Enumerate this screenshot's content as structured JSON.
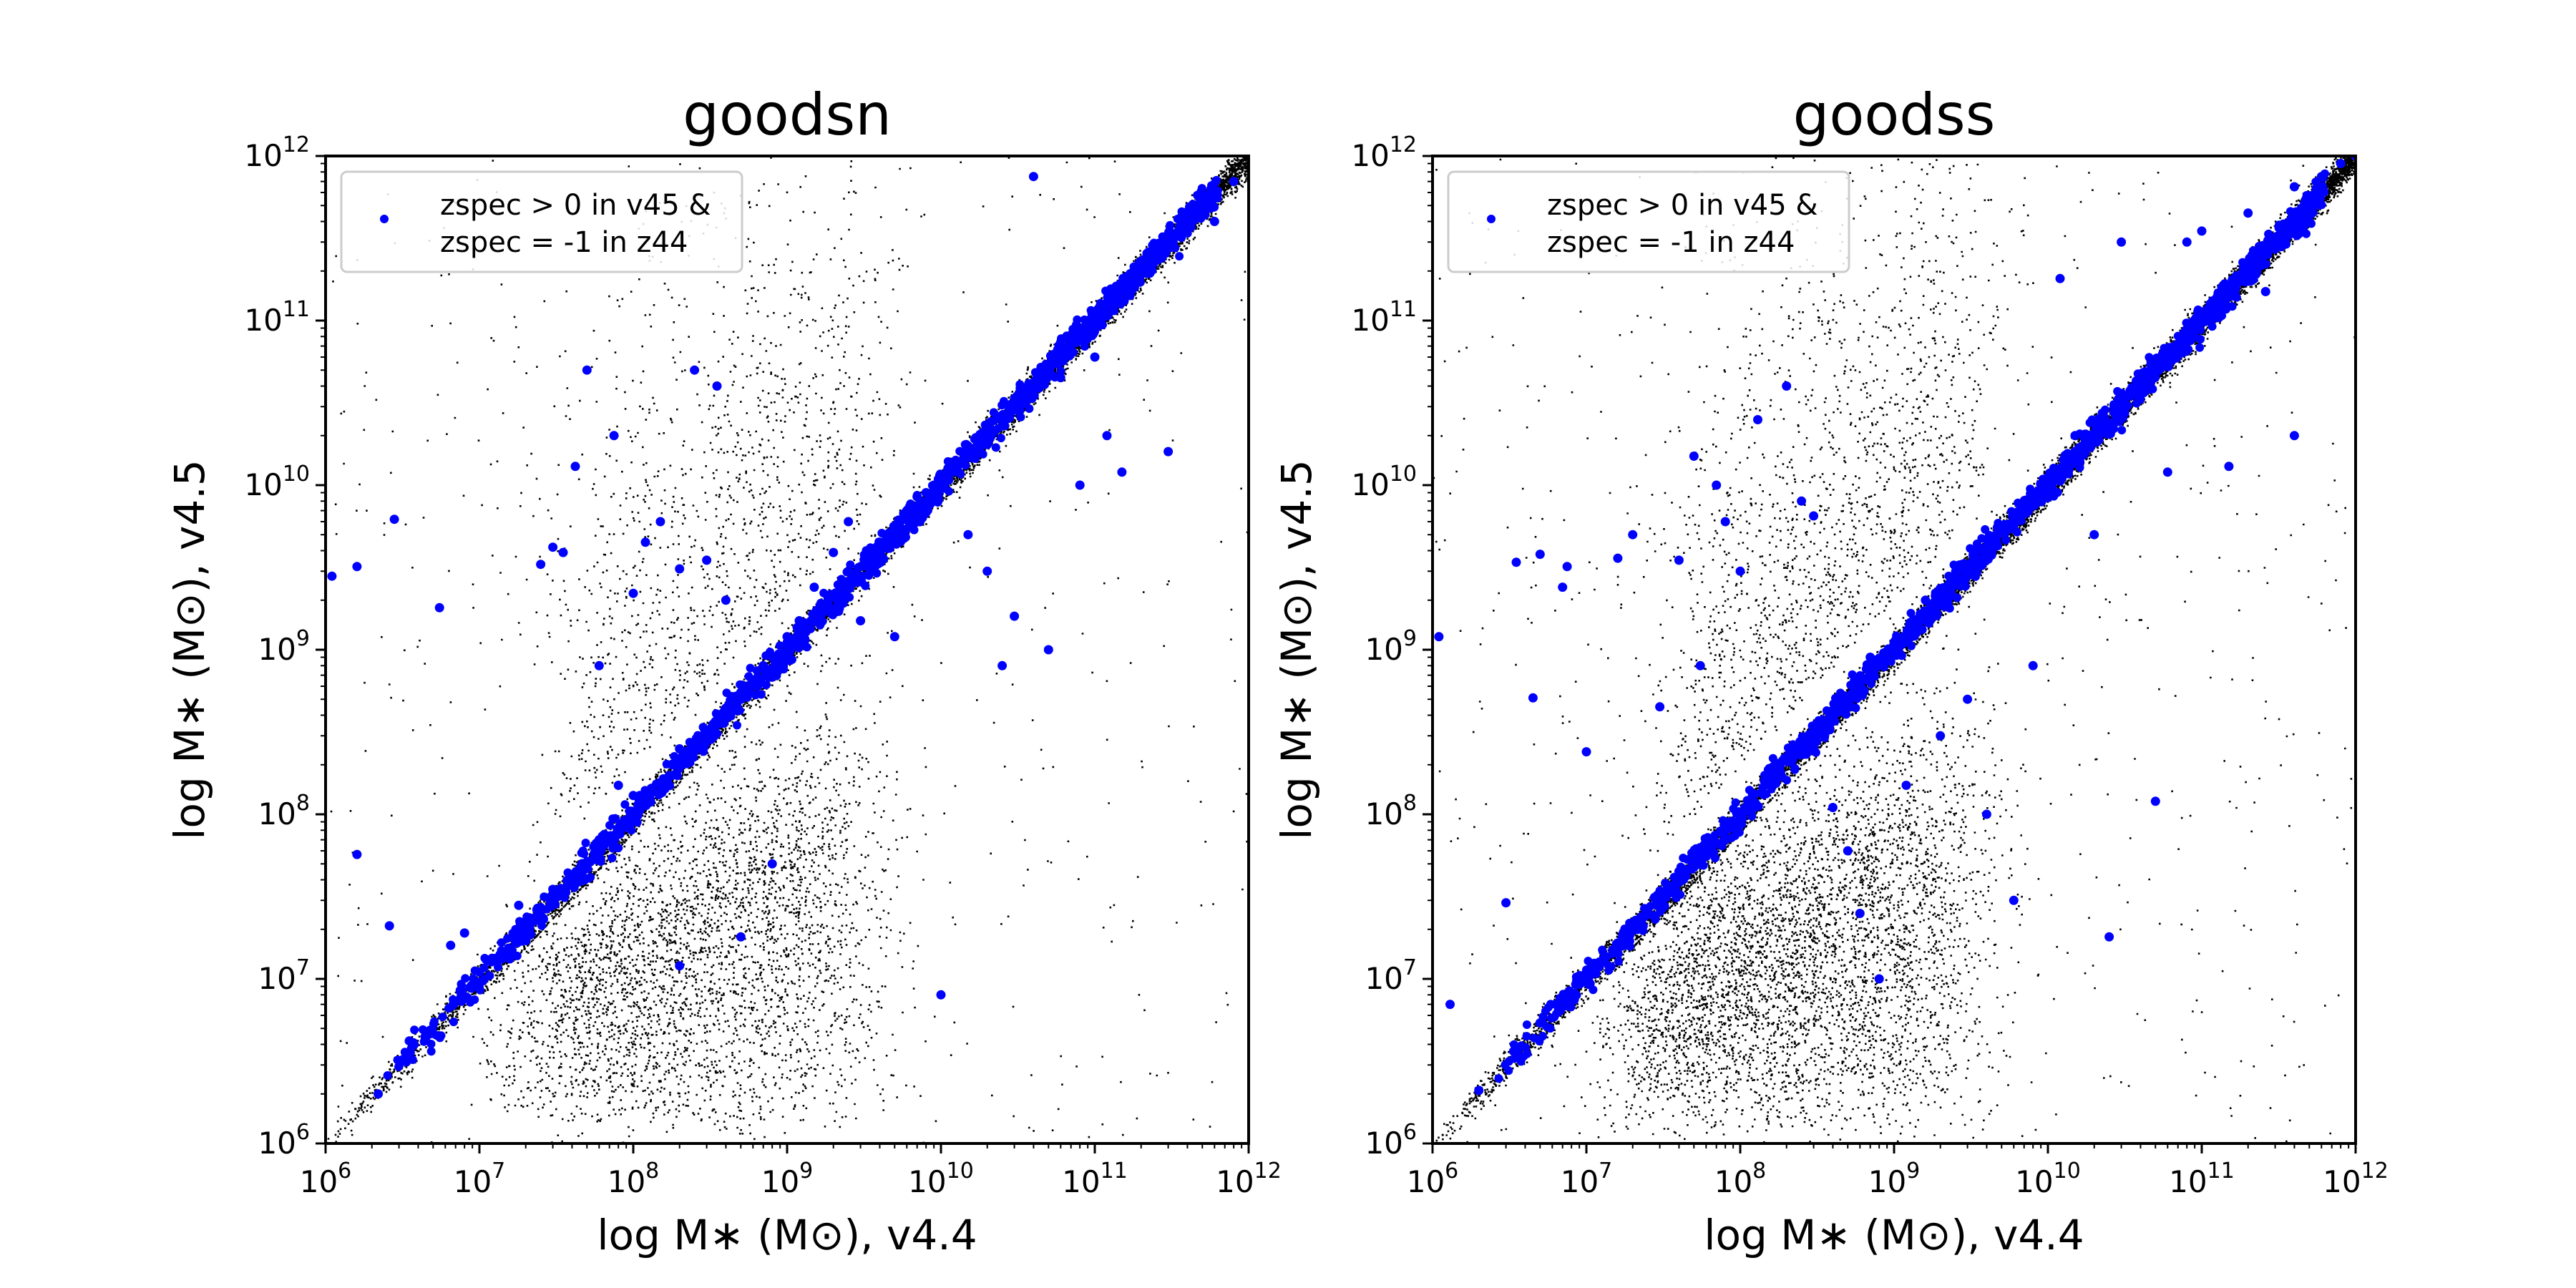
{
  "chart_data": [
    {
      "type": "scatter",
      "title": "goodsn",
      "xlabel": "log M∗ (M⊙), v4.4",
      "ylabel": "log M∗ (M⊙), v4.5",
      "xscale": "log",
      "yscale": "log",
      "xlim": [
        1000000.0,
        1000000000000.0
      ],
      "ylim": [
        1000000.0,
        1000000000000.0
      ],
      "xticks": [
        {
          "value": 1000000.0,
          "base": "10",
          "exp": "6"
        },
        {
          "value": 10000000.0,
          "base": "10",
          "exp": "7"
        },
        {
          "value": 100000000.0,
          "base": "10",
          "exp": "8"
        },
        {
          "value": 1000000000.0,
          "base": "10",
          "exp": "9"
        },
        {
          "value": 10000000000.0,
          "base": "10",
          "exp": "10"
        },
        {
          "value": 100000000000.0,
          "base": "10",
          "exp": "11"
        },
        {
          "value": 1000000000000.0,
          "base": "10",
          "exp": "12"
        }
      ],
      "yticks": [
        {
          "value": 1000000.0,
          "base": "10",
          "exp": "6"
        },
        {
          "value": 10000000.0,
          "base": "10",
          "exp": "7"
        },
        {
          "value": 100000000.0,
          "base": "10",
          "exp": "8"
        },
        {
          "value": 1000000000.0,
          "base": "10",
          "exp": "9"
        },
        {
          "value": 10000000000.0,
          "base": "10",
          "exp": "10"
        },
        {
          "value": 100000000000.0,
          "base": "10",
          "exp": "11"
        },
        {
          "value": 1000000000000.0,
          "base": "10",
          "exp": "12"
        }
      ],
      "legend": {
        "placement": "upper-left",
        "label_lines": [
          "zspec > 0 in v45 &",
          "zspec = -1 in z44"
        ]
      },
      "grid": false,
      "series": [
        {
          "color": "#000000",
          "marker": "dot",
          "point_count_approx": 14000
        },
        {
          "name": "zspec > 0 in v45 & zspec = -1 in z44",
          "color": "#0000ff",
          "marker": "circle",
          "points": [
            [
              1100000.0,
              2800000000.0
            ],
            [
              1600000.0,
              3200000000.0
            ],
            [
              2800000.0,
              6200000000.0
            ],
            [
              1600000.0,
              57000000.0
            ],
            [
              2600000.0,
              21000000.0
            ],
            [
              2200000.0,
              2000000.0
            ],
            [
              3500000.0,
              4200000.0
            ],
            [
              5500000.0,
              1800000000.0
            ],
            [
              6500000.0,
              16000000.0
            ],
            [
              8000000.0,
              19000000.0
            ],
            [
              12000000.0,
              13000000.0
            ],
            [
              18000000.0,
              28000000.0
            ],
            [
              25000000.0,
              3300000000.0
            ],
            [
              30000000.0,
              4200000000.0
            ],
            [
              35000000.0,
              3900000000.0
            ],
            [
              42000000.0,
              13000000000.0
            ],
            [
              50000000.0,
              50000000000.0
            ],
            [
              60000000.0,
              800000000.0
            ],
            [
              75000000.0,
              20000000000.0
            ],
            [
              80000000.0,
              150000000.0
            ],
            [
              100000000.0,
              2200000000.0
            ],
            [
              120000000.0,
              4500000000.0
            ],
            [
              150000000.0,
              6000000000.0
            ],
            [
              200000000.0,
              3100000000.0
            ],
            [
              250000000.0,
              50000000000.0
            ],
            [
              300000000.0,
              3500000000.0
            ],
            [
              350000000.0,
              40000000000.0
            ],
            [
              400000000.0,
              2000000000.0
            ],
            [
              200000000.0,
              12000000.0
            ],
            [
              500000000.0,
              18000000.0
            ],
            [
              800000000.0,
              50000000.0
            ],
            [
              1000000000.0,
              1200000000.0
            ],
            [
              1500000000.0,
              2400000000.0
            ],
            [
              2000000000.0,
              3900000000.0
            ],
            [
              2500000000.0,
              6000000000.0
            ],
            [
              3000000000.0,
              1500000000.0
            ],
            [
              5000000000.0,
              1200000000.0
            ],
            [
              8000000000.0,
              9000000000.0
            ],
            [
              10000000000.0,
              8000000.0
            ],
            [
              15000000000.0,
              5000000000.0
            ],
            [
              20000000000.0,
              3000000000.0
            ],
            [
              25000000000.0,
              800000000.0
            ],
            [
              30000000000.0,
              1600000000.0
            ],
            [
              40000000000.0,
              750000000000.0
            ],
            [
              50000000000.0,
              1000000000.0
            ],
            [
              60000000000.0,
              45000000000.0
            ],
            [
              80000000000.0,
              10000000000.0
            ],
            [
              100000000000.0,
              60000000000.0
            ],
            [
              120000000000.0,
              20000000000.0
            ],
            [
              150000000000.0,
              12000000000.0
            ],
            [
              200000000000.0,
              220000000000.0
            ],
            [
              300000000000.0,
              16000000000.0
            ],
            [
              400000000000.0,
              450000000000.0
            ],
            [
              600000000000.0,
              400000000000.0
            ],
            [
              800000000000.0,
              700000000000.0
            ],
            [
              4000000000.0,
              4500000000.0
            ],
            [
              6000000000.0,
              7000000000.0
            ],
            [
              9000000000.0,
              10000000000.0
            ],
            [
              15000000000.0,
              16000000000.0
            ],
            [
              3000000000.0,
              3200000000.0
            ],
            [
              500000000.0,
              550000000.0
            ],
            [
              700000000.0,
              800000000.0
            ],
            [
              200000000.0,
              250000000.0
            ],
            [
              100000000.0,
              130000000.0
            ],
            [
              60000000.0,
              70000000.0
            ],
            [
              30000000.0,
              35000000.0
            ],
            [
              20000000.0,
              22000000.0
            ],
            [
              10000000.0,
              11000000.0
            ],
            [
              40000000000.0,
              42000000000.0
            ],
            [
              80000000000.0,
              85000000000.0
            ],
            [
              160000000000.0,
              170000000000.0
            ],
            [
              300000000000.0,
              310000000000.0
            ],
            [
              2500000000.0,
              3000000000.0
            ],
            [
              1200000000.0,
              1500000000.0
            ],
            [
              7000000000.0,
              8500000000.0
            ]
          ]
        }
      ]
    },
    {
      "type": "scatter",
      "title": "goodss",
      "xlabel": "log M∗ (M⊙), v4.4",
      "ylabel": "log M∗ (M⊙), v4.5",
      "xscale": "log",
      "yscale": "log",
      "xlim": [
        1000000.0,
        1000000000000.0
      ],
      "ylim": [
        1000000.0,
        1000000000000.0
      ],
      "xticks": [
        {
          "value": 1000000.0,
          "base": "10",
          "exp": "6"
        },
        {
          "value": 10000000.0,
          "base": "10",
          "exp": "7"
        },
        {
          "value": 100000000.0,
          "base": "10",
          "exp": "8"
        },
        {
          "value": 1000000000.0,
          "base": "10",
          "exp": "9"
        },
        {
          "value": 10000000000.0,
          "base": "10",
          "exp": "10"
        },
        {
          "value": 100000000000.0,
          "base": "10",
          "exp": "11"
        },
        {
          "value": 1000000000000.0,
          "base": "10",
          "exp": "12"
        }
      ],
      "yticks": [
        {
          "value": 1000000.0,
          "base": "10",
          "exp": "6"
        },
        {
          "value": 10000000.0,
          "base": "10",
          "exp": "7"
        },
        {
          "value": 100000000.0,
          "base": "10",
          "exp": "8"
        },
        {
          "value": 1000000000.0,
          "base": "10",
          "exp": "9"
        },
        {
          "value": 10000000000.0,
          "base": "10",
          "exp": "10"
        },
        {
          "value": 100000000000.0,
          "base": "10",
          "exp": "11"
        },
        {
          "value": 1000000000000.0,
          "base": "10",
          "exp": "12"
        }
      ],
      "legend": {
        "placement": "upper-left",
        "label_lines": [
          "zspec > 0 in v45 &",
          "zspec = -1 in z44"
        ]
      },
      "grid": false,
      "series": [
        {
          "color": "#000000",
          "marker": "dot",
          "point_count_approx": 18000
        },
        {
          "name": "zspec > 0 in v45 & zspec = -1 in z44",
          "color": "#0000ff",
          "marker": "circle",
          "points": [
            [
              1100000.0,
              1200000000.0
            ],
            [
              1300000.0,
              7000000.0
            ],
            [
              3000000.0,
              29000000.0
            ],
            [
              3500000.0,
              3400000000.0
            ],
            [
              4500000.0,
              510000000.0
            ],
            [
              5000000.0,
              3800000000.0
            ],
            [
              7000000.0,
              2400000000.0
            ],
            [
              7500000.0,
              3200000000.0
            ],
            [
              10000000.0,
              240000000.0
            ],
            [
              12000000.0,
              12000000.0
            ],
            [
              16000000.0,
              3600000000.0
            ],
            [
              20000000.0,
              5000000000.0
            ],
            [
              30000000.0,
              450000000.0
            ],
            [
              40000000.0,
              3500000000.0
            ],
            [
              50000000.0,
              15000000000.0
            ],
            [
              55000000.0,
              800000000.0
            ],
            [
              70000000.0,
              10000000000.0
            ],
            [
              80000000.0,
              6000000000.0
            ],
            [
              100000000.0,
              3000000000.0
            ],
            [
              130000000.0,
              25000000000.0
            ],
            [
              200000000.0,
              40000000000.0
            ],
            [
              250000000.0,
              8000000000.0
            ],
            [
              300000000.0,
              6500000000.0
            ],
            [
              400000000.0,
              110000000.0
            ],
            [
              500000000.0,
              60000000.0
            ],
            [
              600000000.0,
              25000000.0
            ],
            [
              800000000.0,
              10000000.0
            ],
            [
              1200000000.0,
              150000000.0
            ],
            [
              2000000000.0,
              300000000.0
            ],
            [
              3000000000.0,
              500000000.0
            ],
            [
              4000000000.0,
              100000000.0
            ],
            [
              6000000000.0,
              30000000.0
            ],
            [
              8000000000.0,
              800000000.0
            ],
            [
              12000000000.0,
              180000000000.0
            ],
            [
              15000000000.0,
              20000000000.0
            ],
            [
              20000000000.0,
              5000000000.0
            ],
            [
              25000000000.0,
              18000000.0
            ],
            [
              30000000000.0,
              300000000000.0
            ],
            [
              50000000000.0,
              120000000.0
            ],
            [
              60000000000.0,
              12000000000.0
            ],
            [
              80000000000.0,
              300000000000.0
            ],
            [
              100000000000.0,
              350000000000.0
            ],
            [
              150000000000.0,
              13000000000.0
            ],
            [
              200000000000.0,
              450000000000.0
            ],
            [
              260000000000.0,
              150000000000.0
            ],
            [
              400000000000.0,
              650000000000.0
            ],
            [
              600000000000.0,
              750000000000.0
            ],
            [
              800000000000.0,
              900000000000.0
            ],
            [
              1000000000000.0,
              1000000000000.0
            ],
            [
              400000000000.0,
              20000000000.0
            ],
            [
              3000000000.0,
              3200000000.0
            ],
            [
              5000000000.0,
              5500000000.0
            ],
            [
              8000000000.0,
              9000000000.0
            ],
            [
              15000000000.0,
              16000000000.0
            ],
            [
              30000000000.0,
              32000000000.0
            ],
            [
              60000000000.0,
              65000000000.0
            ],
            [
              120000000000.0,
              130000000000.0
            ],
            [
              240000000000.0,
              250000000000.0
            ],
            [
              1000000000.0,
              1100000000.0
            ],
            [
              600000000.0,
              650000000.0
            ],
            [
              300000000.0,
              330000000.0
            ],
            [
              150000000.0,
              170000000.0
            ],
            [
              80000000.0,
              90000000.0
            ],
            [
              40000000.0,
              45000000.0
            ],
            [
              20000000.0,
              22000000.0
            ],
            [
              10000000.0,
              11000000.0
            ],
            [
              5000000.0,
              5400000.0
            ],
            [
              2000000.0,
              2100000.0
            ],
            [
              1600000000.0,
              2000000000.0
            ],
            [
              700000000.0,
              900000000.0
            ]
          ]
        }
      ]
    }
  ]
}
